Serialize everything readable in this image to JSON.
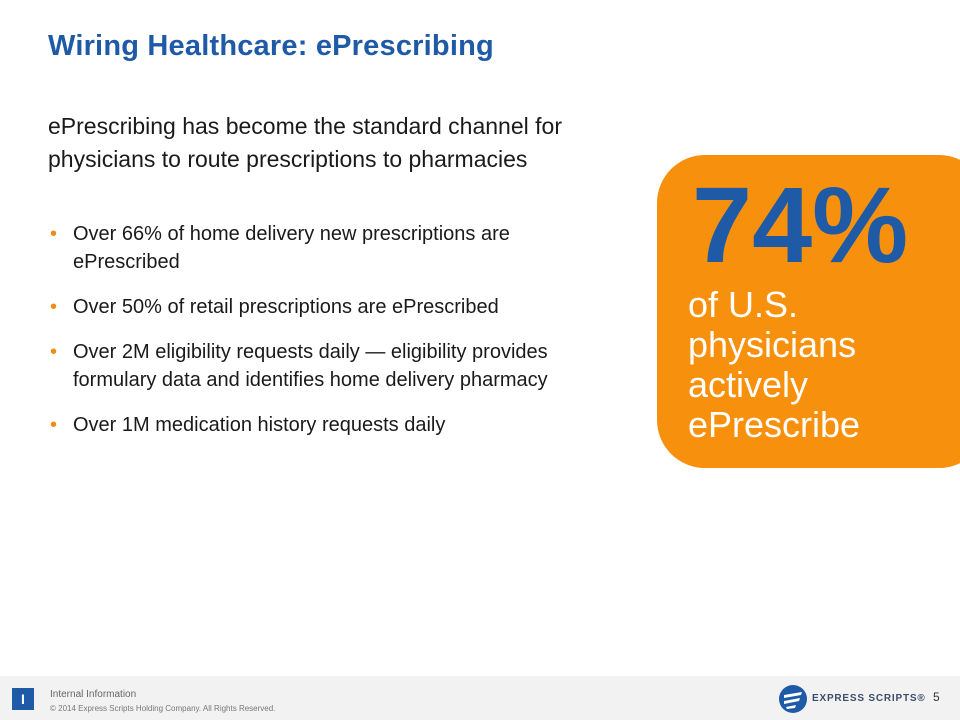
{
  "slide": {
    "title": "Wiring Healthcare: ePrescribing",
    "intro": "ePrescribing has become the standard channel for physicians to route prescriptions to pharmacies",
    "bullet_glyph": "•",
    "bullets": [
      "Over 66% of home delivery new prescriptions are ePrescribed",
      "Over 50% of retail prescriptions are ePrescribed",
      "Over 2M eligibility requests daily — eligibility provides formulary data and identifies home delivery pharmacy",
      "Over 1M medication history requests daily"
    ]
  },
  "callout": {
    "stat": "74%",
    "text": "of U.S. physicians actively ePrescribe"
  },
  "footer": {
    "badge": "I",
    "internal_label": "Internal Information",
    "copyright": "© 2014  Express Scripts Holding Company.  All Rights Reserved.",
    "brand_name": "EXPRESS SCRIPTS®",
    "page_number": "5"
  },
  "colors": {
    "title_blue": "#1f5aa7",
    "accent_orange": "#f7900d",
    "bullet_orange": "#f08c16"
  },
  "icons": {
    "brand_logo": "express-scripts-logo-icon",
    "footer_badge": "internal-badge-icon"
  }
}
